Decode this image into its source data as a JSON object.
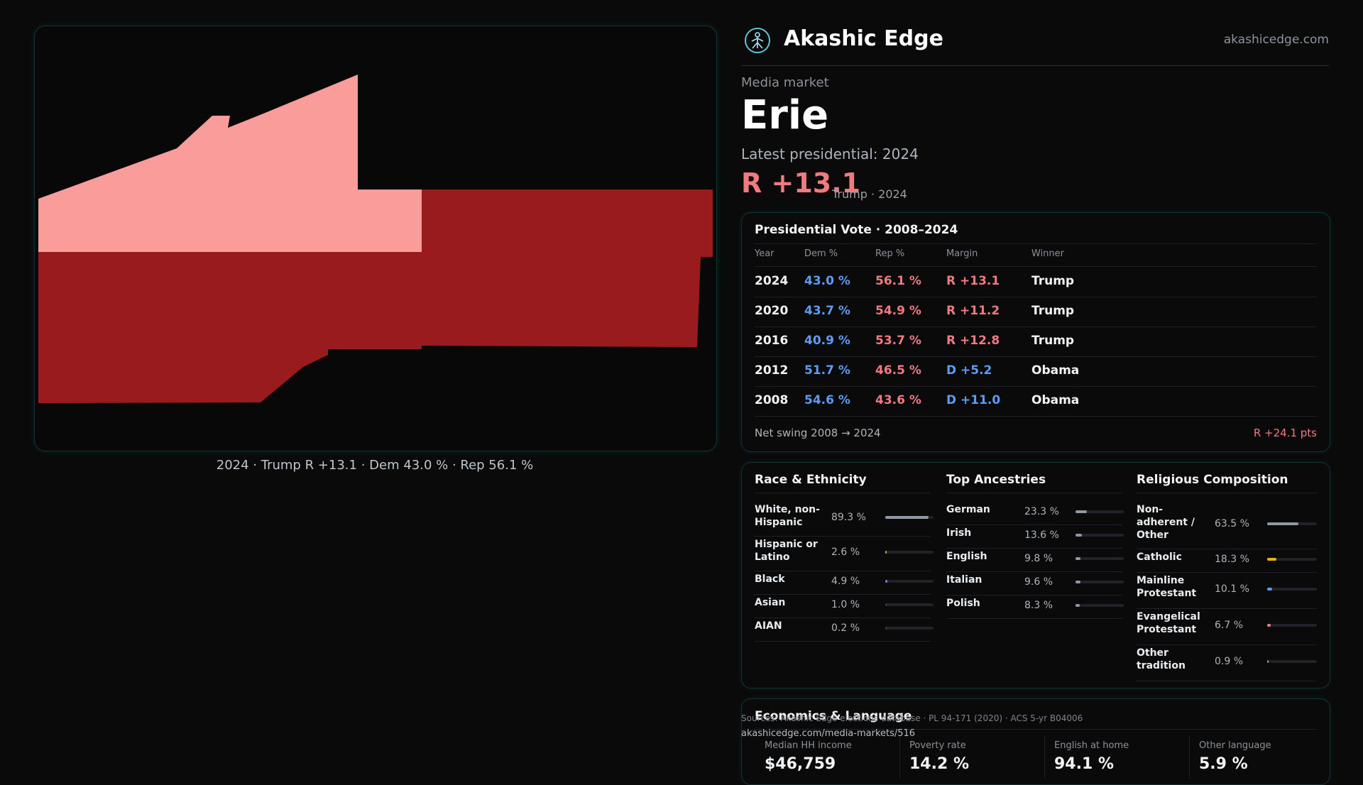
{
  "brand": {
    "name": "Akashic Edge",
    "site": "akashicedge.com",
    "logo_icon": "tree-of-life-icon"
  },
  "market": {
    "kicker": "Media market",
    "name": "Erie",
    "latest_label": "Latest presidential: 2024",
    "margin": "R +13.1",
    "margin_sub": "Trump · 2024"
  },
  "map": {
    "caption": "2024 · Trump R +13.1 · Dem 43.0 % · Rep 56.1 %",
    "colors": {
      "light_red": "#fa9c9a",
      "dark_red": "#9a1b1e"
    }
  },
  "vote_table": {
    "title": "Presidential Vote · 2008–2024",
    "headers": [
      "Year",
      "Dem %",
      "Rep %",
      "Margin",
      "Winner"
    ],
    "rows": [
      {
        "year": "2024",
        "dem": "43.0 %",
        "rep": "56.1 %",
        "margin": "R +13.1",
        "winner": "Trump",
        "party": "R"
      },
      {
        "year": "2020",
        "dem": "43.7 %",
        "rep": "54.9 %",
        "margin": "R +11.2",
        "winner": "Trump",
        "party": "R"
      },
      {
        "year": "2016",
        "dem": "40.9 %",
        "rep": "53.7 %",
        "margin": "R +12.8",
        "winner": "Trump",
        "party": "R"
      },
      {
        "year": "2012",
        "dem": "51.7 %",
        "rep": "46.5 %",
        "margin": "D +5.2",
        "winner": "Obama",
        "party": "D"
      },
      {
        "year": "2008",
        "dem": "54.6 %",
        "rep": "43.6 %",
        "margin": "D +11.0",
        "winner": "Obama",
        "party": "D"
      }
    ],
    "net_swing_label": "Net swing 2008 → 2024",
    "net_swing_value": "R +24.1 pts"
  },
  "race": {
    "title": "Race & Ethnicity",
    "items": [
      {
        "label": "White, non-\nHispanic",
        "value": "89.3 %",
        "pct": 89.3,
        "color": "#8f98a3"
      },
      {
        "label": "Hispanic or\nLatino",
        "value": "2.6 %",
        "pct": 2.6,
        "color": "#e0a030"
      },
      {
        "label": "Black",
        "value": "4.9 %",
        "pct": 4.9,
        "color": "#6a7fe0"
      },
      {
        "label": "Asian",
        "value": "1.0 %",
        "pct": 1.0,
        "color": "#3a3f45"
      },
      {
        "label": "AIAN",
        "value": "0.2 %",
        "pct": 0.2,
        "color": "#3a3f45"
      }
    ]
  },
  "ancestry": {
    "title": "Top Ancestries",
    "items": [
      {
        "label": "German",
        "value": "23.3 %",
        "pct": 23.3,
        "color": "#8f98a3"
      },
      {
        "label": "Irish",
        "value": "13.6 %",
        "pct": 13.6,
        "color": "#8f98a3"
      },
      {
        "label": "English",
        "value": "9.8 %",
        "pct": 9.8,
        "color": "#8f98a3"
      },
      {
        "label": "Italian",
        "value": "9.6 %",
        "pct": 9.6,
        "color": "#8f98a3"
      },
      {
        "label": "Polish",
        "value": "8.3 %",
        "pct": 8.3,
        "color": "#8f98a3"
      }
    ]
  },
  "religion": {
    "title": "Religious Composition",
    "items": [
      {
        "label": "Non-\nadherent /\nOther",
        "value": "63.5 %",
        "pct": 63.5,
        "color": "#8f98a3"
      },
      {
        "label": "Catholic",
        "value": "18.3 %",
        "pct": 18.3,
        "color": "#e8b020"
      },
      {
        "label": "Mainline\nProtestant",
        "value": "10.1 %",
        "pct": 10.1,
        "color": "#5e9bf2"
      },
      {
        "label": "Evangelical\nProtestant",
        "value": "6.7 %",
        "pct": 6.7,
        "color": "#f07a80"
      },
      {
        "label": "Other\ntradition",
        "value": "0.9 %",
        "pct": 0.9,
        "color": "#8f98a3"
      }
    ]
  },
  "economics": {
    "title": "Economics & Language",
    "stats": [
      {
        "label": "Median HH income",
        "value": "$46,759"
      },
      {
        "label": "Poverty rate",
        "value": "14.2 %"
      },
      {
        "label": "English at home",
        "value": "94.1 %"
      },
      {
        "label": "Other language",
        "value": "5.9 %"
      }
    ]
  },
  "footer": {
    "sources": "Sources: Akashic Edge elections database · PL 94-171 (2020) · ACS 5-yr B04006",
    "url": "akashicedge.com/media-markets/516"
  }
}
